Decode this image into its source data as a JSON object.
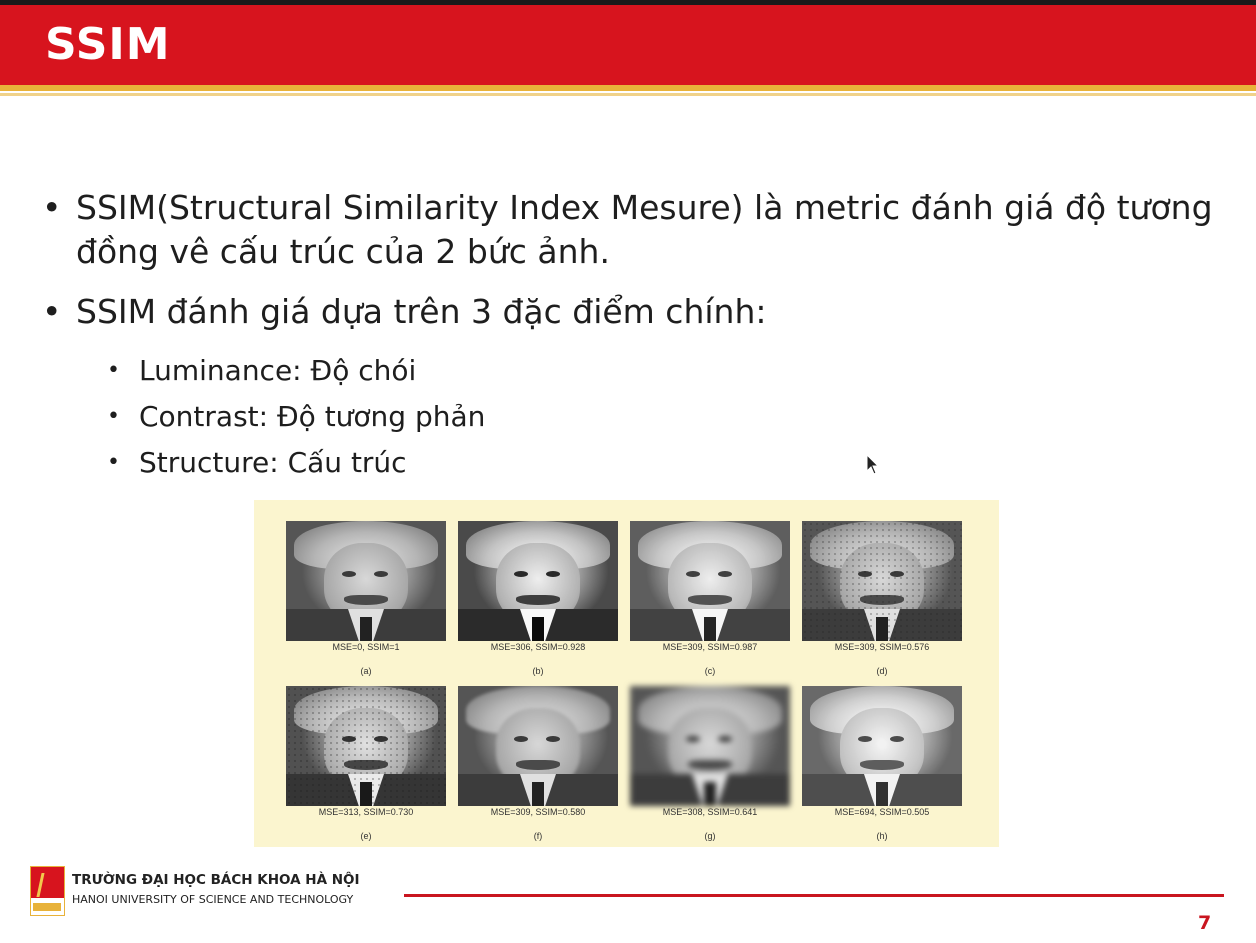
{
  "slide": {
    "title": "SSIM",
    "bullets": [
      "SSIM(Structural Similarity Index Mesure) là metric đánh giá độ tương đồng vê cấu trúc của 2 bức ảnh.",
      "SSIM đánh giá dựa trên 3 đặc điểm chính:"
    ],
    "sub_bullets": [
      "Luminance: Độ chói",
      "Contrast: Độ tương phản",
      "Structure: Cấu trúc"
    ],
    "figure": {
      "images": [
        {
          "caption": "MSE=0, SSIM=1",
          "label": "(a)"
        },
        {
          "caption": "MSE=306, SSIM=0.928",
          "label": "(b)"
        },
        {
          "caption": "MSE=309, SSIM=0.987",
          "label": "(c)"
        },
        {
          "caption": "MSE=309, SSIM=0.576",
          "label": "(d)"
        },
        {
          "caption": "MSE=313, SSIM=0.730",
          "label": "(e)"
        },
        {
          "caption": "MSE=309, SSIM=0.580",
          "label": "(f)"
        },
        {
          "caption": "MSE=308, SSIM=0.641",
          "label": "(g)"
        },
        {
          "caption": "MSE=694, SSIM=0.505",
          "label": "(h)"
        }
      ]
    },
    "footer": {
      "university_vn": "TRƯỜNG ĐẠI HỌC BÁCH KHOA HÀ NỘI",
      "university_en": "HANOI UNIVERSITY OF SCIENCE AND TECHNOLOGY",
      "page_number": "7"
    }
  },
  "colors": {
    "brand_red": "#d7141e",
    "gold": "#e8b23a",
    "figure_bg": "#fbf5cf"
  }
}
